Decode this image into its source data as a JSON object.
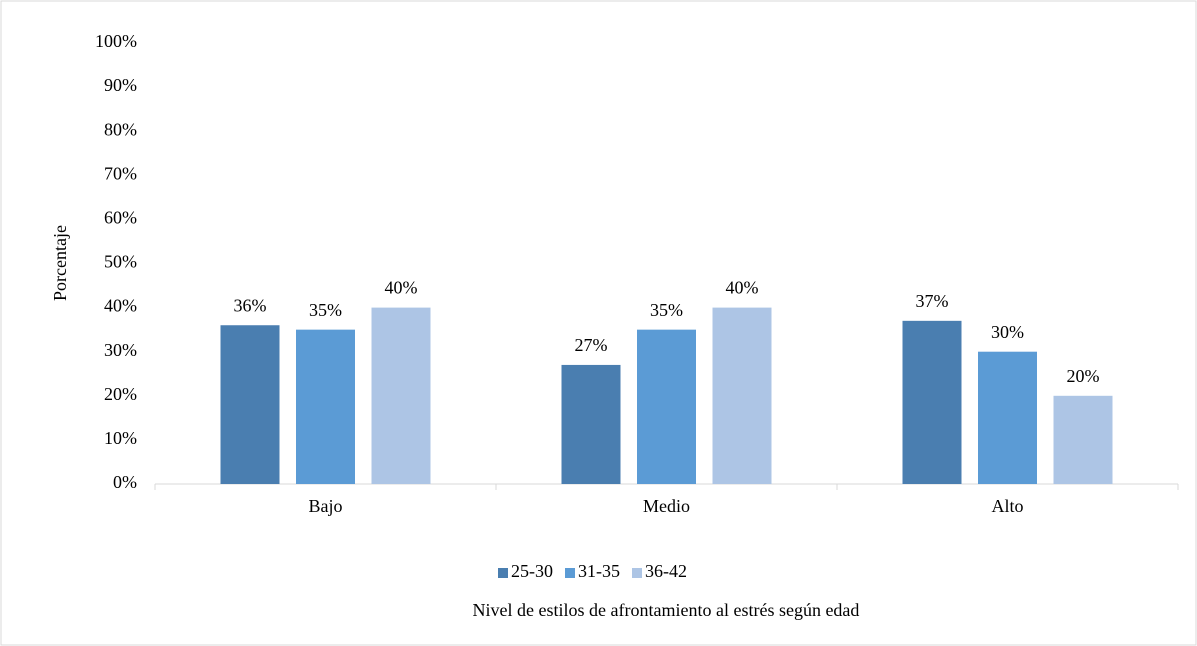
{
  "chart_data": {
    "type": "bar",
    "title": "Nivel de estilos de afrontamiento al estrés según edad",
    "y_label": "Porcentaje",
    "categories": [
      "Bajo",
      "Medio",
      "Alto"
    ],
    "series": [
      {
        "name": "25-30",
        "color": "#4a7eb0",
        "values": [
          36,
          27,
          37
        ],
        "value_labels": [
          "36%",
          "27%",
          "37%"
        ]
      },
      {
        "name": "31-35",
        "color": "#5b9bd5",
        "values": [
          35,
          35,
          30
        ],
        "value_labels": [
          "35%",
          "35%",
          "30%"
        ]
      },
      {
        "name": "36-42",
        "color": "#adc5e5",
        "values": [
          40,
          40,
          20
        ],
        "value_labels": [
          "40%",
          "40%",
          "20%"
        ]
      }
    ],
    "ylim": [
      0,
      100
    ],
    "yticks": [
      {
        "value": 0,
        "label": "0%"
      },
      {
        "value": 10,
        "label": "10%"
      },
      {
        "value": 20,
        "label": "20%"
      },
      {
        "value": 30,
        "label": "30%"
      },
      {
        "value": 40,
        "label": "40%"
      },
      {
        "value": 50,
        "label": "50%"
      },
      {
        "value": 60,
        "label": "60%"
      },
      {
        "value": 70,
        "label": "70%"
      },
      {
        "value": 80,
        "label": "80%"
      },
      {
        "value": 90,
        "label": "90%"
      },
      {
        "value": 100,
        "label": "100%"
      }
    ],
    "grid": false,
    "legend": "bottom"
  }
}
